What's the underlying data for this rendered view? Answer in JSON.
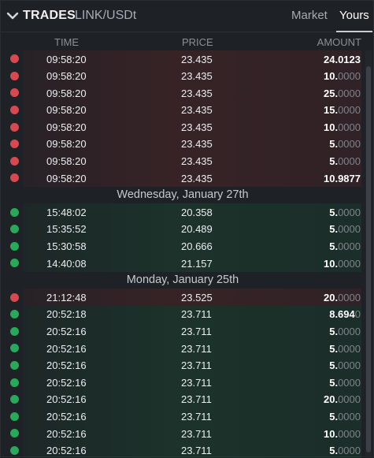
{
  "header": {
    "title": "TRADES",
    "pair": "LINK/USDt",
    "tabs": [
      {
        "label": "Market",
        "active": false
      },
      {
        "label": "Yours",
        "active": true
      }
    ]
  },
  "columns": {
    "time": "TIME",
    "price": "PRICE",
    "amount": "AMOUNT"
  },
  "colors": {
    "sell": "#d9474f",
    "buy": "#27a95a",
    "panel_bg": "#1e2125"
  },
  "groups": [
    {
      "date": "",
      "trades": [
        {
          "side": "sell",
          "time": "09:58:20",
          "price": "23.435",
          "amount_int": "24.0123",
          "amount_dec": ""
        },
        {
          "side": "sell",
          "time": "09:58:20",
          "price": "23.435",
          "amount_int": "10.",
          "amount_dec": "0000"
        },
        {
          "side": "sell",
          "time": "09:58:20",
          "price": "23.435",
          "amount_int": "25.",
          "amount_dec": "0000"
        },
        {
          "side": "sell",
          "time": "09:58:20",
          "price": "23.435",
          "amount_int": "15.",
          "amount_dec": "0000"
        },
        {
          "side": "sell",
          "time": "09:58:20",
          "price": "23.435",
          "amount_int": "10.",
          "amount_dec": "0000"
        },
        {
          "side": "sell",
          "time": "09:58:20",
          "price": "23.435",
          "amount_int": "5.",
          "amount_dec": "0000"
        },
        {
          "side": "sell",
          "time": "09:58:20",
          "price": "23.435",
          "amount_int": "5.",
          "amount_dec": "0000"
        },
        {
          "side": "sell",
          "time": "09:58:20",
          "price": "23.435",
          "amount_int": "10.9877",
          "amount_dec": ""
        }
      ]
    },
    {
      "date": "Wednesday, January 27th",
      "trades": [
        {
          "side": "buy",
          "time": "15:48:02",
          "price": "20.358",
          "amount_int": "5.",
          "amount_dec": "0000"
        },
        {
          "side": "buy",
          "time": "15:35:52",
          "price": "20.489",
          "amount_int": "5.",
          "amount_dec": "0000"
        },
        {
          "side": "buy",
          "time": "15:30:58",
          "price": "20.666",
          "amount_int": "5.",
          "amount_dec": "0000"
        },
        {
          "side": "buy",
          "time": "14:40:08",
          "price": "21.157",
          "amount_int": "10.",
          "amount_dec": "0000"
        }
      ]
    },
    {
      "date": "Monday, January 25th",
      "trades": [
        {
          "side": "sell",
          "time": "21:12:48",
          "price": "23.525",
          "amount_int": "20.",
          "amount_dec": "0000"
        },
        {
          "side": "buy",
          "time": "20:52:18",
          "price": "23.711",
          "amount_int": "8.694",
          "amount_dec": "0"
        },
        {
          "side": "buy",
          "time": "20:52:16",
          "price": "23.711",
          "amount_int": "5.",
          "amount_dec": "0000"
        },
        {
          "side": "buy",
          "time": "20:52:16",
          "price": "23.711",
          "amount_int": "5.",
          "amount_dec": "0000"
        },
        {
          "side": "buy",
          "time": "20:52:16",
          "price": "23.711",
          "amount_int": "5.",
          "amount_dec": "0000"
        },
        {
          "side": "buy",
          "time": "20:52:16",
          "price": "23.711",
          "amount_int": "5.",
          "amount_dec": "0000"
        },
        {
          "side": "buy",
          "time": "20:52:16",
          "price": "23.711",
          "amount_int": "20.",
          "amount_dec": "0000"
        },
        {
          "side": "buy",
          "time": "20:52:16",
          "price": "23.711",
          "amount_int": "5.",
          "amount_dec": "0000"
        },
        {
          "side": "buy",
          "time": "20:52:16",
          "price": "23.711",
          "amount_int": "10.",
          "amount_dec": "0000"
        },
        {
          "side": "buy",
          "time": "20:52:16",
          "price": "23.711",
          "amount_int": "5.",
          "amount_dec": "0000"
        }
      ]
    }
  ]
}
